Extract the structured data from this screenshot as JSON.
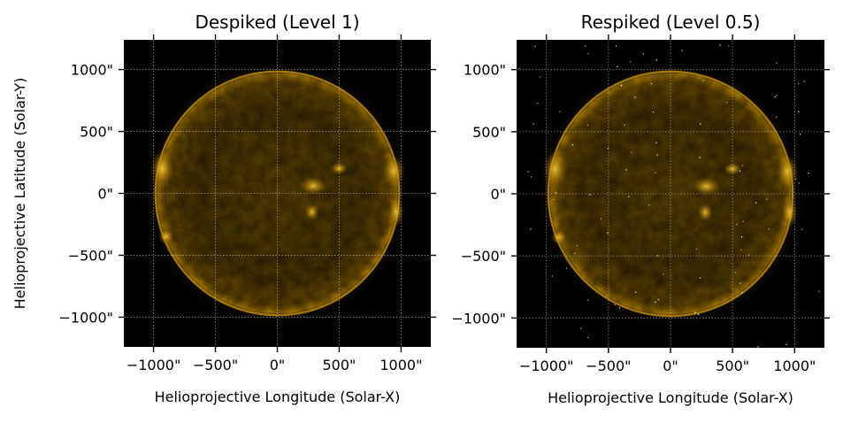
{
  "figure": {
    "panels": [
      {
        "title": "Despiked (Level 1)",
        "xlabel": "Helioprojective Longitude (Solar-X)",
        "ylabel": "Helioprojective Latitude (Solar-Y)",
        "image_style": "despiked"
      },
      {
        "title": "Respiked (Level 0.5)",
        "xlabel": "Helioprojective Longitude (Solar-X)",
        "ylabel": "",
        "image_style": "respiked"
      }
    ],
    "x_ticks": [
      "−1000\"",
      "−500\"",
      "0\"",
      "500\"",
      "1000\""
    ],
    "x_tick_values": [
      -1000,
      -500,
      0,
      500,
      1000
    ],
    "y_ticks": [
      "1000\"",
      "500\"",
      "0\"",
      "−500\"",
      "−1000\""
    ],
    "y_tick_values": [
      1000,
      500,
      0,
      -500,
      -1000
    ],
    "data_range": [
      -1240,
      1240
    ],
    "solar_radius_arcsec": 985,
    "colors": {
      "sun_core": "#6e5200",
      "sun_mid": "#4a3500",
      "limb": "#c99200",
      "active_region": "#e8b020",
      "background": "#000000",
      "grid": "#bbbbbb"
    }
  }
}
